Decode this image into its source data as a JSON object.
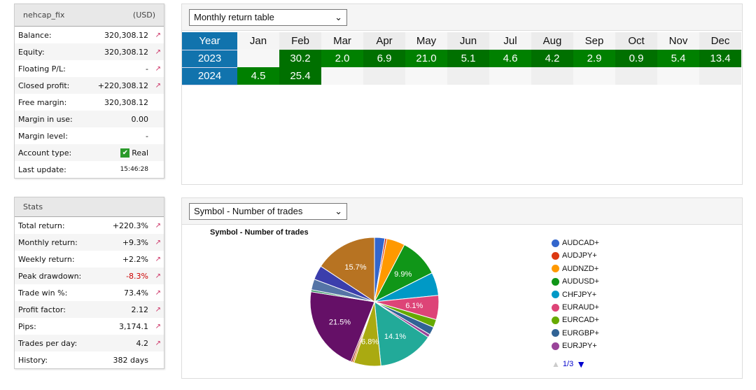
{
  "account": {
    "name": "nehcap_fix",
    "currency": "(USD)",
    "rows": [
      {
        "label": "Balance:",
        "value": "320,308.12",
        "chart": true
      },
      {
        "label": "Equity:",
        "value": "320,308.12",
        "chart": true
      },
      {
        "label": "Floating P/L:",
        "value": "-",
        "chart": true
      },
      {
        "label": "Closed profit:",
        "value": "+220,308.12",
        "chart": true
      },
      {
        "label": "Free margin:",
        "value": "320,308.12",
        "chart": false
      },
      {
        "label": "Margin in use:",
        "value": "0.00",
        "chart": false
      },
      {
        "label": "Margin level:",
        "value": "-",
        "chart": false
      },
      {
        "label": "Account type:",
        "value": "Real",
        "chart": false
      },
      {
        "label": "Last update:",
        "value": "15:46:28",
        "chart": false
      }
    ]
  },
  "stats": {
    "title": "Stats",
    "rows": [
      {
        "label": "Total return:",
        "value": "+220.3%",
        "chart": true
      },
      {
        "label": "Monthly return:",
        "value": "+9.3%",
        "chart": true
      },
      {
        "label": "Weekly return:",
        "value": "+2.2%",
        "chart": true
      },
      {
        "label": "Peak drawdown:",
        "value": "-8.3%",
        "chart": true,
        "color": "#cc0000"
      },
      {
        "label": "Trade win %:",
        "value": "73.4%",
        "chart": true
      },
      {
        "label": "Profit factor:",
        "value": "2.12",
        "chart": true
      },
      {
        "label": "Pips:",
        "value": "3,174.1",
        "chart": true
      },
      {
        "label": "Trades per day:",
        "value": "4.2",
        "chart": true
      },
      {
        "label": "History:",
        "value": "382 days",
        "chart": false
      }
    ]
  },
  "monthly": {
    "select": "Monthly return table",
    "header": [
      "Year",
      "Jan",
      "Feb",
      "Mar",
      "Apr",
      "May",
      "Jun",
      "Jul",
      "Aug",
      "Sep",
      "Oct",
      "Nov",
      "Dec"
    ],
    "rows": [
      {
        "year": "2023",
        "values": [
          "",
          "30.2",
          "2.0",
          "6.9",
          "21.0",
          "5.1",
          "4.6",
          "4.2",
          "2.9",
          "0.9",
          "5.4",
          "13.4"
        ]
      },
      {
        "year": "2024",
        "values": [
          "4.5",
          "25.4",
          "",
          "",
          "",
          "",
          "",
          "",
          "",
          "",
          "",
          ""
        ]
      }
    ]
  },
  "symbols": {
    "select": "Symbol - Number of trades",
    "pager": "1/3"
  },
  "chart_data": {
    "type": "pie",
    "title": "Symbol - Number of trades",
    "slices": [
      {
        "label": "AUDCAD+",
        "value": 2.6,
        "color": "#3366cc"
      },
      {
        "label": "AUDJPY+",
        "value": 0.5,
        "color": "#dc3912"
      },
      {
        "label": "AUDNZD+",
        "value": 4.6,
        "color": "#ff9900"
      },
      {
        "label": "AUDUSD+",
        "value": 9.9,
        "color": "#109618"
      },
      {
        "label": "CHFJPY+",
        "value": 5.8,
        "color": "#0099c6"
      },
      {
        "label": "EURAUD+",
        "value": 6.1,
        "color": "#dd4477"
      },
      {
        "label": "EURCAD+",
        "value": 2.0,
        "color": "#66aa00"
      },
      {
        "label": "EURGBP+",
        "value": 2.0,
        "color": "#316395"
      },
      {
        "label": "EURJPY+",
        "value": 0.8,
        "color": "#994499"
      },
      {
        "label": "",
        "value": 14.1,
        "color": "#22aa99"
      },
      {
        "label": "",
        "value": 6.8,
        "color": "#aaaa11"
      },
      {
        "label": "",
        "value": 0.4,
        "color": "#e67300"
      },
      {
        "label": "",
        "value": 0.4,
        "color": "#8b0707"
      },
      {
        "label": "",
        "value": 21.5,
        "color": "#651067"
      },
      {
        "label": "",
        "value": 0.5,
        "color": "#329262"
      },
      {
        "label": "",
        "value": 2.7,
        "color": "#5574a6"
      },
      {
        "label": "",
        "value": 3.6,
        "color": "#3b3eac"
      },
      {
        "label": "",
        "value": 15.7,
        "color": "#b77322"
      }
    ]
  }
}
